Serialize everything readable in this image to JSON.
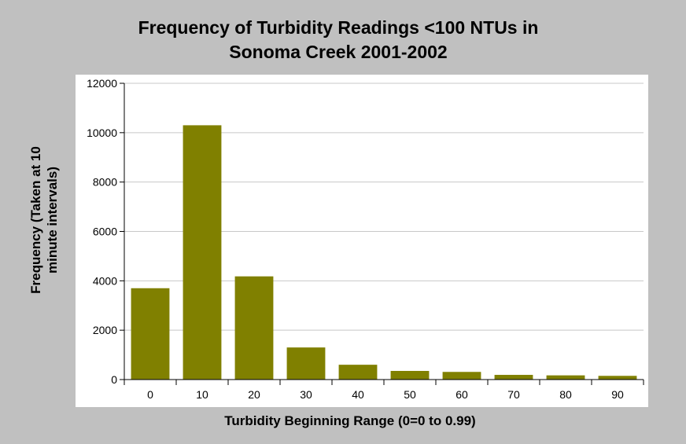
{
  "chart_data": {
    "type": "bar",
    "title_lines": [
      "Frequency of Turbidity Readings <100 NTUs in",
      "Sonoma Creek 2001-2002"
    ],
    "xlabel": "Turbidity Beginning Range (0=0 to 0.99)",
    "ylabel_lines": [
      "Frequency (Taken at 10",
      "minute intervals)"
    ],
    "categories": [
      "0",
      "10",
      "20",
      "30",
      "40",
      "50",
      "60",
      "70",
      "80",
      "90"
    ],
    "values": [
      3700,
      10300,
      4180,
      1300,
      600,
      350,
      310,
      190,
      170,
      150
    ],
    "ylim": [
      0,
      12000
    ],
    "yticks": [
      "0",
      "2000",
      "4000",
      "6000",
      "8000",
      "10000",
      "12000"
    ],
    "grid": true,
    "legend": "none",
    "bar_color": "#808000",
    "background_color": "#c0c0c0",
    "plot_background": "#ffffff"
  }
}
